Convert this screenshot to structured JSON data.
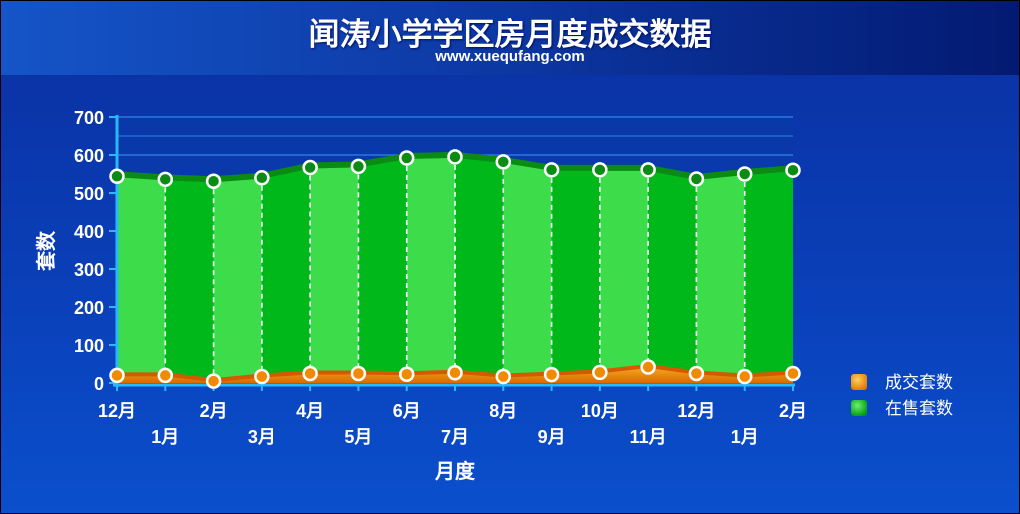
{
  "header": {
    "title": "闻涛小学学区房月度成交数据",
    "subtitle": "www.xuequfang.com"
  },
  "colors": {
    "onsale_light": "#3ddc4a",
    "onsale_dark": "#00b81a",
    "onsale_line": "#0b8a14",
    "sold_fill": "#f08a00",
    "sold_line": "#d45a00",
    "sold_legend": "#f39a10",
    "onsale_legend": "#12c024"
  },
  "chart_data": {
    "type": "area",
    "xlabel": "月度",
    "ylabel": "套数",
    "ylim": [
      0,
      700
    ],
    "yticks": [
      "0",
      "100",
      "200",
      "300",
      "400",
      "500",
      "600",
      "700"
    ],
    "categories": [
      "12月",
      "1月",
      "2月",
      "3月",
      "4月",
      "5月",
      "6月",
      "7月",
      "8月",
      "9月",
      "10月",
      "11月",
      "12月",
      "1月",
      "2月"
    ],
    "series": [
      {
        "name": "成交套数",
        "values": [
          20,
          20,
          5,
          17,
          25,
          25,
          23,
          27,
          17,
          22,
          28,
          42,
          25,
          17,
          25
        ]
      },
      {
        "name": "在售套数",
        "values": [
          544,
          536,
          531,
          540,
          567,
          570,
          592,
          595,
          582,
          561,
          561,
          561,
          537,
          550,
          560
        ]
      }
    ],
    "legend_position": "right"
  }
}
